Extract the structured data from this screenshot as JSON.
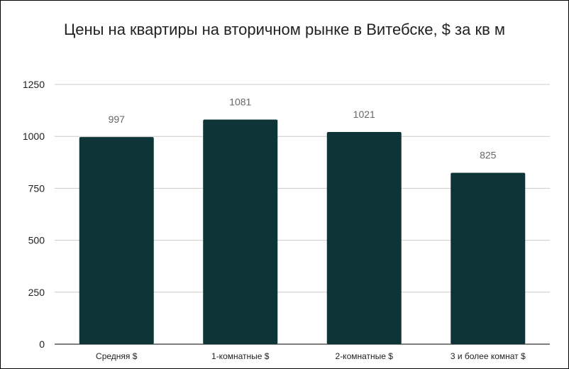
{
  "chart_data": {
    "type": "bar",
    "title": "Цены на квартиры на вторичном рынке в Витебске, $ за кв м",
    "categories": [
      "Средняя $",
      "1-комнатные $",
      "2-комнатные $",
      "3 и более комнат $"
    ],
    "values": [
      997,
      1081,
      1021,
      825
    ],
    "data_labels": [
      "997",
      "1081",
      "1021",
      "825"
    ],
    "yticks": [
      0,
      250,
      500,
      750,
      1000,
      1250
    ],
    "ytick_labels": [
      "0",
      "250",
      "500",
      "750",
      "1000",
      "1250"
    ],
    "ylim": [
      0,
      1250
    ],
    "grid": true,
    "bar_color": "#0d3436",
    "xlabel": "",
    "ylabel": ""
  }
}
